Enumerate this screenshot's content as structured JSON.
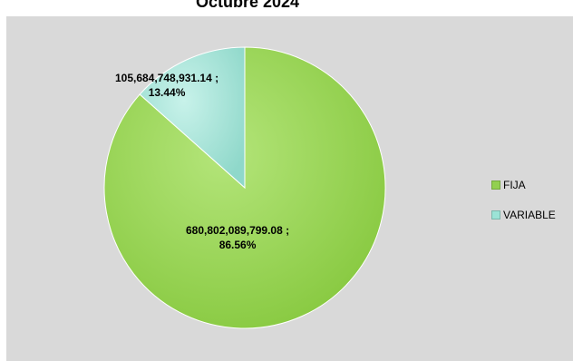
{
  "chart_data": {
    "type": "pie",
    "title": "Octubre 2024",
    "slices": [
      {
        "name": "FIJA",
        "value": 680802089799.08,
        "percent": 86.56,
        "color": "#92d050",
        "label_value": "680,802,089,799.08 ;",
        "label_percent": "86.56%"
      },
      {
        "name": "VARIABLE",
        "value": 105684748931.14,
        "percent": 13.44,
        "color": "#9be3d6",
        "label_value": "105,684,748,931.14 ;",
        "label_percent": "13.44%"
      }
    ],
    "legend_placement": "right"
  },
  "colors": {
    "plot_background": "#d9d9d9"
  }
}
